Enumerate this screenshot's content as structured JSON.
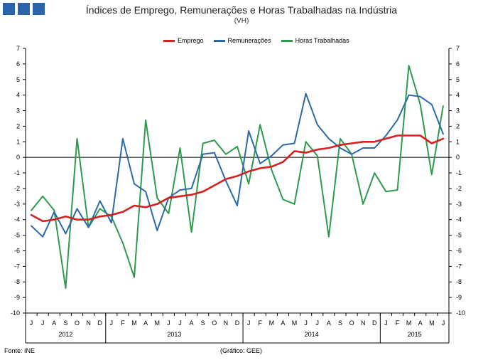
{
  "header": {
    "title": "Índices de Emprego, Remunerações e Horas Trabalhadas na Indústria",
    "subtitle": "(VH)"
  },
  "footer": {
    "source": "Fonte: INE",
    "credit": "(Gráfico: GEE)"
  },
  "chart_data": {
    "type": "line",
    "title": "Índices de Emprego, Remunerações e Horas Trabalhadas na Indústria",
    "subtitle": "(VH)",
    "ylim": [
      -10,
      7
    ],
    "yticks": [
      7,
      6,
      5,
      4,
      3,
      2,
      1,
      0,
      -1,
      -2,
      -3,
      -4,
      -5,
      -6,
      -7,
      -8,
      -9,
      -10
    ],
    "x": [
      "J",
      "J",
      "A",
      "S",
      "O",
      "N",
      "D",
      "J",
      "F",
      "M",
      "A",
      "M",
      "J",
      "J",
      "A",
      "S",
      "O",
      "N",
      "D",
      "J",
      "F",
      "M",
      "A",
      "M",
      "J",
      "J",
      "A",
      "S",
      "O",
      "N",
      "D",
      "J",
      "F",
      "M",
      "A",
      "M",
      "J"
    ],
    "years": [
      {
        "label": "2012",
        "start": 0,
        "end": 6
      },
      {
        "label": "2013",
        "start": 7,
        "end": 18
      },
      {
        "label": "2014",
        "start": 19,
        "end": 30
      },
      {
        "label": "2015",
        "start": 31,
        "end": 36
      }
    ],
    "legend_position": "top",
    "series": [
      {
        "name": "Emprego",
        "color": "#d42020",
        "values": [
          -3.7,
          -4.1,
          -4.0,
          -3.8,
          -4.0,
          -4.0,
          -3.8,
          -3.7,
          -3.5,
          -3.1,
          -3.2,
          -3.0,
          -2.6,
          -2.5,
          -2.4,
          -2.2,
          -1.8,
          -1.4,
          -1.2,
          -0.9,
          -0.7,
          -0.6,
          -0.3,
          0.4,
          0.3,
          0.5,
          0.6,
          0.8,
          0.9,
          1.0,
          1.0,
          1.2,
          1.4,
          1.4,
          1.4,
          0.9,
          1.2
        ]
      },
      {
        "name": "Remunerações",
        "color": "#2a6aa8",
        "values": [
          -4.4,
          -5.1,
          -3.5,
          -4.9,
          -3.3,
          -4.5,
          -2.8,
          -4.2,
          1.2,
          -1.7,
          -2.2,
          -4.7,
          -2.6,
          -2.1,
          -2.0,
          0.2,
          0.3,
          -1.5,
          -3.1,
          1.7,
          -0.4,
          0.1,
          0.8,
          0.9,
          4.1,
          2.1,
          1.2,
          0.6,
          0.2,
          0.6,
          0.6,
          1.4,
          2.4,
          4.0,
          3.9,
          3.4,
          1.5
        ]
      },
      {
        "name": "Horas Trabalhadas",
        "color": "#2e9a4c",
        "values": [
          -3.4,
          -2.5,
          -3.4,
          -8.4,
          1.2,
          -4.5,
          -3.3,
          -3.8,
          -5.5,
          -7.7,
          2.4,
          -2.6,
          -3.6,
          0.6,
          -4.8,
          0.9,
          1.1,
          0.2,
          0.7,
          -1.7,
          2.1,
          -0.8,
          -2.7,
          -3.0,
          1.0,
          0.1,
          -5.1,
          1.2,
          0.2,
          -3.0,
          -1.0,
          -2.2,
          -2.1,
          5.9,
          3.4,
          -1.1,
          3.3
        ]
      }
    ]
  }
}
